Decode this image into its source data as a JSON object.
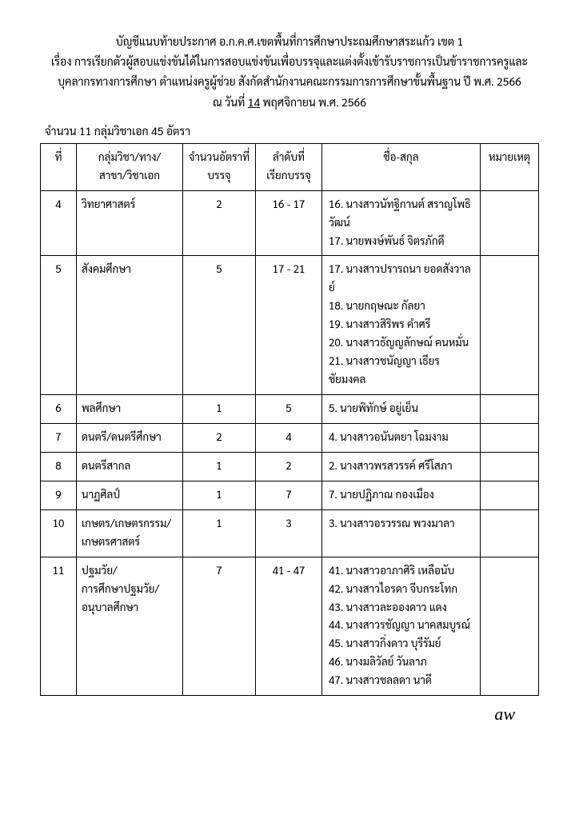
{
  "header": {
    "line1": "บัญชีแนบท้ายประกาศ อ.ก.ค.ศ.เขตพื้นที่การศึกษาประถมศึกษาสระแก้ว เขต 1",
    "line2": "เรื่อง การเรียกตัวผู้สอบแข่งขันได้ในการสอบแข่งขันเพื่อบรรจุและแต่งตั้งเข้ารับราชการเป็นข้าราชการครูและ",
    "line3": "บุคลากรทางการศึกษา ตำแหน่งครูผู้ช่วย สังกัดสำนักงานคณะกรรมการการศึกษาขั้นพื้นฐาน ปี พ.ศ. 2566",
    "line4_pre": "ณ วันที่ ",
    "line4_day": "14",
    "line4_post": " พฤศจิกายน พ.ศ. 2566"
  },
  "subhead": "จำนวน 11 กลุ่มวิชาเอก 45 อัตรา",
  "columns": {
    "c1": "ที่",
    "c2a": "กลุ่มวิชา/ทาง/",
    "c2b": "สาขา/วิชาเอก",
    "c3a": "จำนวนอัตราที่",
    "c3b": "บรรจุ",
    "c4a": "ลำดับที่",
    "c4b": "เรียกบรรจุ",
    "c5": "ชื่อ-สกุล",
    "c6": "หมายเหตุ"
  },
  "rows": [
    {
      "no": "4",
      "subject": "วิทยาศาสตร์",
      "qty": "2",
      "range": "16 - 17",
      "names": [
        "16. นางสาวนัทฐิกานต์  สราญโพธิวัฒน์",
        "17. นายพงษ์พันธ์  จิตรภักดี"
      ]
    },
    {
      "no": "5",
      "subject": "สังคมศึกษา",
      "qty": "5",
      "range": "17 - 21",
      "names": [
        "17. นางสาวปรารถนา  ยอดสังวาลย์",
        "18. นายกฤษณะ  กัลยา",
        "19. นางสาวสิริพร  คำศรี",
        "20. นางสาวธัญญลักษณ์  คนหมั่น",
        "21. นางสาวชนัญญา  เธียรชัยมงคล"
      ]
    },
    {
      "no": "6",
      "subject": "พลศึกษา",
      "qty": "1",
      "range": "5",
      "names": [
        "5. นายพิทักษ์  อยู่เย็น"
      ]
    },
    {
      "no": "7",
      "subject": "ดนตรี/ดนตรีศึกษา",
      "qty": "2",
      "range": "4",
      "names": [
        "4. นางสาวอนันตยา  โฉมงาม"
      ]
    },
    {
      "no": "8",
      "subject": "ดนตรีสากล",
      "qty": "1",
      "range": "2",
      "names": [
        "2. นางสาวพรสวรรค์  ศรีโสภา"
      ]
    },
    {
      "no": "9",
      "subject": "นาฏศิลป์",
      "qty": "1",
      "range": "7",
      "names": [
        "7. นายปฏิภาณ  กองเมือง"
      ]
    },
    {
      "no": "10",
      "subject": "เกษตร/เกษตรกรรม/\nเกษตรศาสตร์",
      "qty": "1",
      "range": "3",
      "names": [
        "3. นางสาวอรวรรณ  พวงมาลา"
      ]
    },
    {
      "no": "11",
      "subject": "ปฐมวัย/\nการศึกษาปฐมวัย/\nอนุบาลศึกษา",
      "qty": "7",
      "range": "41 - 47",
      "names": [
        "41. นางสาวอาภาศิริ  เหลือนับ",
        "42. นางสาวไอรดา  จีบกระโทก",
        "43. นางสาวละอองดาว  แดง",
        "44. นางสาวรชัญญา  นาคสมบูรณ์",
        "45. นางสาวกิ่งดาว  บุรีรัมย์",
        "46. นางมลิวัลย์  วันลาภ",
        "47. นางสาวชลลดา  นาดี"
      ]
    }
  ],
  "signature": "aw"
}
